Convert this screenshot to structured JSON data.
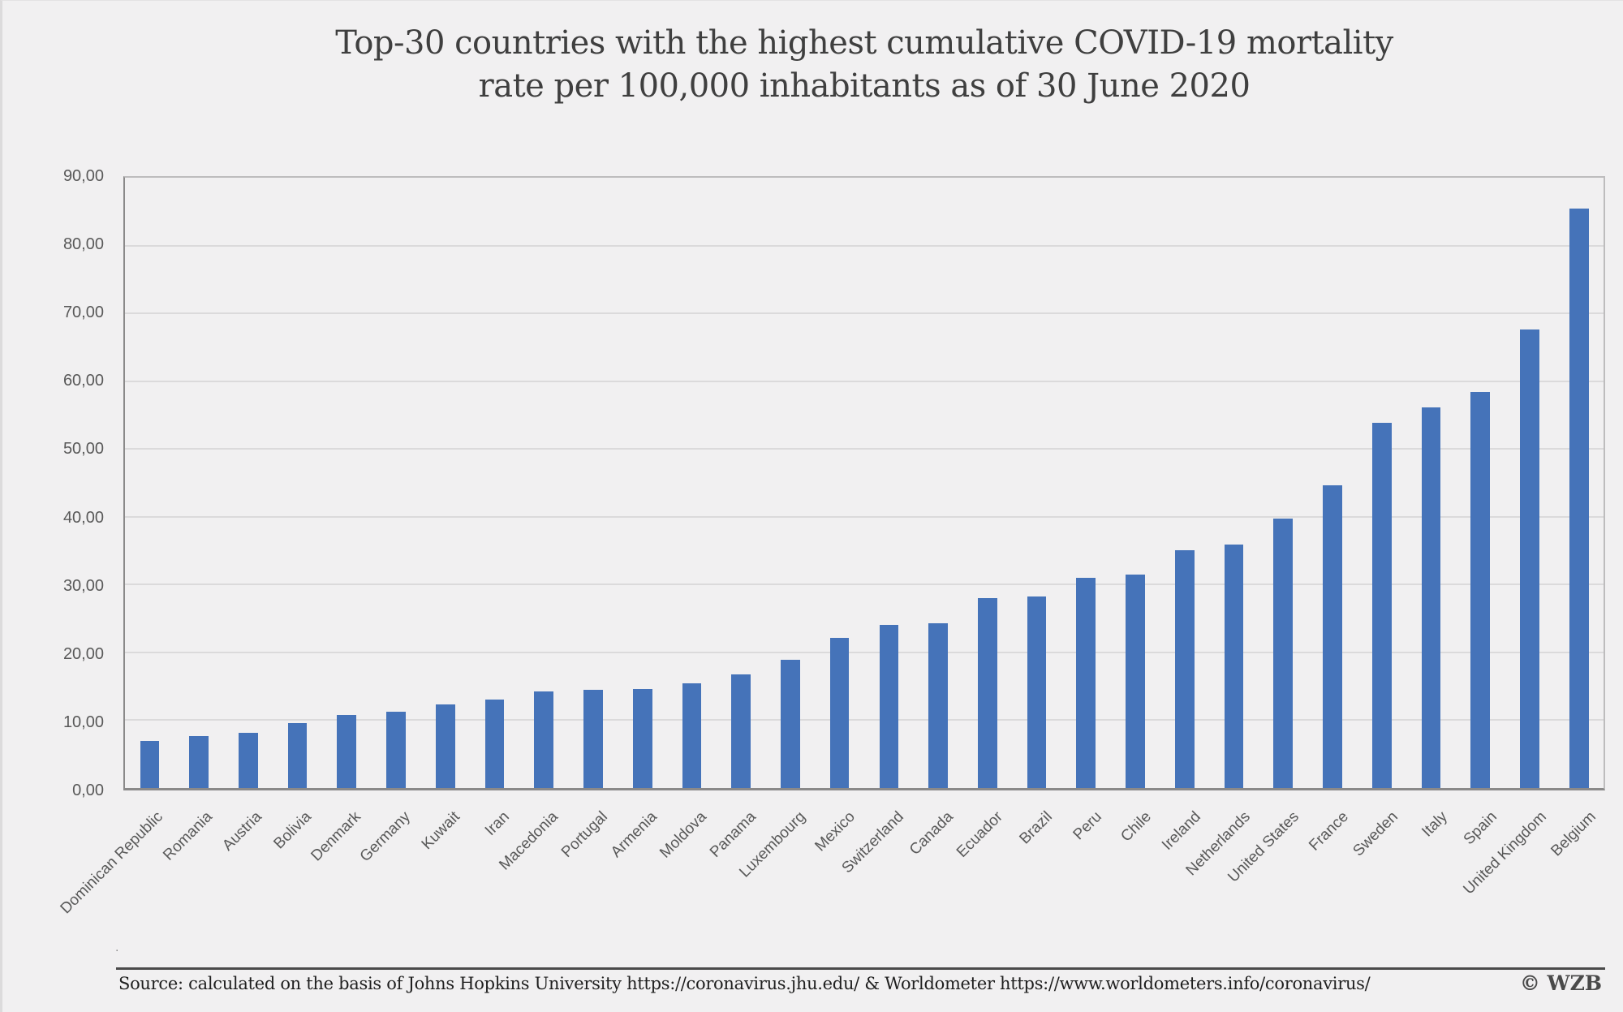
{
  "page": {
    "title_line1": "Top-30 countries with the highest cumulative COVID-19 mortality",
    "title_line2": "rate per 100,000 inhabitants as of 30 June 2020",
    "source_text": "Source: calculated on the basis of Johns Hopkins University https://coronavirus.jhu.edu/ & Worldometer https://www.worldometers.info/coronavirus/",
    "credit": "© WZB",
    "stray_dot": "."
  },
  "colors": {
    "background": "#f1f0f1",
    "bar": "#4573b9",
    "gridline": "#dbdadb",
    "axis": "#8a8989",
    "tick_text": "#595959",
    "title_text": "#3f3f3f",
    "source_text": "#1f1f1f",
    "divider": "#4a4a4a"
  },
  "chart_data": {
    "type": "bar",
    "title": "Top-30 countries with the highest cumulative COVID-19 mortality rate per 100,000 inhabitants as of 30 June 2020",
    "xlabel": "",
    "ylabel": "",
    "ylim": [
      0,
      90
    ],
    "ytick_step": 10,
    "ytick_labels": [
      "0,00",
      "10,00",
      "20,00",
      "30,00",
      "40,00",
      "50,00",
      "60,00",
      "70,00",
      "80,00",
      "90,00"
    ],
    "grid": "horizontal",
    "legend": "none",
    "bar_color": "#4573b9",
    "categories": [
      "Dominican Republic",
      "Romania",
      "Austria",
      "Bolivia",
      "Denmark",
      "Germany",
      "Kuwait",
      "Iran",
      "Macedonia",
      "Portugal",
      "Armenia",
      "Moldova",
      "Panama",
      "Luxembourg",
      "Mexico",
      "Switzerland",
      "Canada",
      "Ecuador",
      "Brazil",
      "Peru",
      "Chile",
      "Ireland",
      "Netherlands",
      "United States",
      "France",
      "Sweden",
      "Italy",
      "Spain",
      "United Kingdom",
      "Belgium"
    ],
    "values": [
      7.0,
      7.7,
      8.1,
      9.6,
      10.8,
      11.2,
      12.3,
      13.0,
      14.2,
      14.5,
      14.6,
      15.5,
      16.7,
      18.9,
      22.1,
      24.0,
      24.3,
      28.0,
      28.3,
      31.0,
      31.5,
      35.1,
      35.9,
      39.7,
      44.6,
      53.8,
      56.1,
      58.4,
      67.6,
      85.4
    ]
  }
}
